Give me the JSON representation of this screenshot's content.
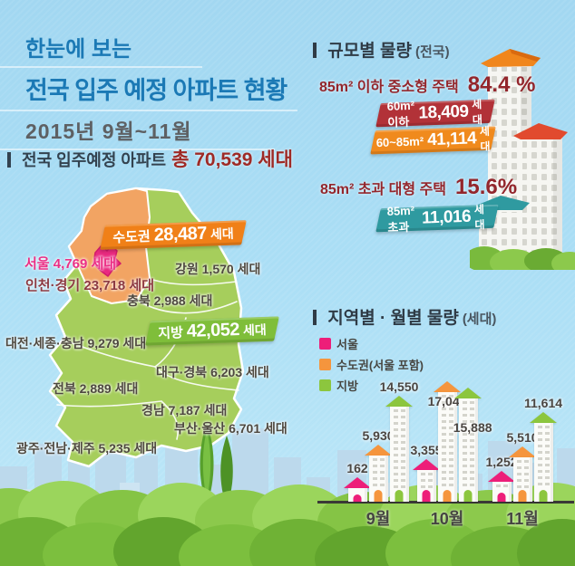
{
  "header": {
    "title_line1": "한눈에 보는",
    "title_line2": "전국 입주 예정 아파트 현황",
    "subtitle": "2015년 9월~11월"
  },
  "total": {
    "label": "전국 입주예정 아파트",
    "value": "총 70,539 세대"
  },
  "map": {
    "sudogwon_banner": {
      "label": "수도권",
      "value": "28,487",
      "unit": "세대",
      "color": "#f08018"
    },
    "jibang_banner": {
      "label": "지방",
      "value": "42,052",
      "unit": "세대",
      "color": "#7fbe3a"
    },
    "labels": {
      "seoul": "서울 4,769 세대",
      "incheon_gyeonggi": "인천·경기 23,718 세대",
      "gangwon": "강원 1,570 세대",
      "chungbuk": "충북 2,988 세대",
      "daejeon_sejong_chungnam": "대전·세종·충남 9,279 세대",
      "daegu_gyeongbuk": "대구·경북 6,203 세대",
      "jeonbuk": "전북 2,889 세대",
      "gyeongnam": "경남 7,187 세대",
      "busan_ulsan": "부산·울산 6,701 세대",
      "gwangju_jeonnam_jeju": "광주·전남·제주 5,235 세대"
    }
  },
  "size_section": {
    "header": "규모별 물량",
    "header_sub": "(전국)",
    "small_label": "85m² 이하 중소형 주택",
    "small_pct": "84.4 %",
    "large_label": "85m² 초과 대형 주택",
    "large_pct": "15.6%",
    "banners": [
      {
        "label": "60m²이하",
        "value": "18,409",
        "unit": "세대",
        "color": "#b23238"
      },
      {
        "label": "60~85m²",
        "value": "41,114",
        "unit": "세대",
        "color": "#f08a1d"
      },
      {
        "label": "85m²초과",
        "value": "11,016",
        "unit": "세대",
        "color": "#2f9aa0"
      }
    ]
  },
  "chart_section": {
    "header": "지역별 · 월별 물량",
    "header_sub": "(세대)",
    "legend": [
      {
        "label": "서울",
        "color": "#ed1e79"
      },
      {
        "label": "수도권(서울 포함)",
        "color": "#f5953d"
      },
      {
        "label": "지방",
        "color": "#8cc63e"
      }
    ]
  },
  "chart_data": [
    {
      "id": "monthly",
      "type": "bar",
      "title": "지역별 · 월별 물량 (세대)",
      "categories": [
        "9월",
        "10월",
        "11월"
      ],
      "series": [
        {
          "name": "서울",
          "color": "#ed1e79",
          "values": [
            162,
            3355,
            1252
          ],
          "labels": [
            "162",
            "3,355",
            "1,252"
          ]
        },
        {
          "name": "수도권(서울 포함)",
          "color": "#f5953d",
          "values": [
            5930,
            17047,
            5510
          ],
          "labels": [
            "5,930",
            "17,047",
            "5,510"
          ]
        },
        {
          "name": "지방",
          "color": "#8cc63e",
          "values": [
            14550,
            15888,
            11614
          ],
          "labels": [
            "14,550",
            "15,888",
            "11,614"
          ]
        }
      ],
      "ylim": [
        0,
        18000
      ],
      "grid": false,
      "legend_position": "top-left",
      "bar_style": "building-pictogram"
    },
    {
      "id": "size_breakdown",
      "type": "bar",
      "title": "규모별 물량 (전국)",
      "categories": [
        "60m² 이하",
        "60~85m²",
        "85m² 초과"
      ],
      "values": [
        18409,
        41114,
        11016
      ],
      "annotations": [
        {
          "label": "85m² 이하 중소형 주택",
          "pct": 84.4
        },
        {
          "label": "85m² 초과 대형 주택",
          "pct": 15.6
        }
      ]
    },
    {
      "id": "regional_totals",
      "type": "table",
      "title": "전국 입주예정 아파트 (세대)",
      "total": 70539,
      "rows": [
        [
          "수도권",
          28487
        ],
        [
          "서울",
          4769
        ],
        [
          "인천·경기",
          23718
        ],
        [
          "지방",
          42052
        ],
        [
          "강원",
          1570
        ],
        [
          "충북",
          2988
        ],
        [
          "대전·세종·충남",
          9279
        ],
        [
          "대구·경북",
          6203
        ],
        [
          "전북",
          2889
        ],
        [
          "경남",
          7187
        ],
        [
          "부산·울산",
          6701
        ],
        [
          "광주·전남·제주",
          5235
        ]
      ]
    }
  ]
}
